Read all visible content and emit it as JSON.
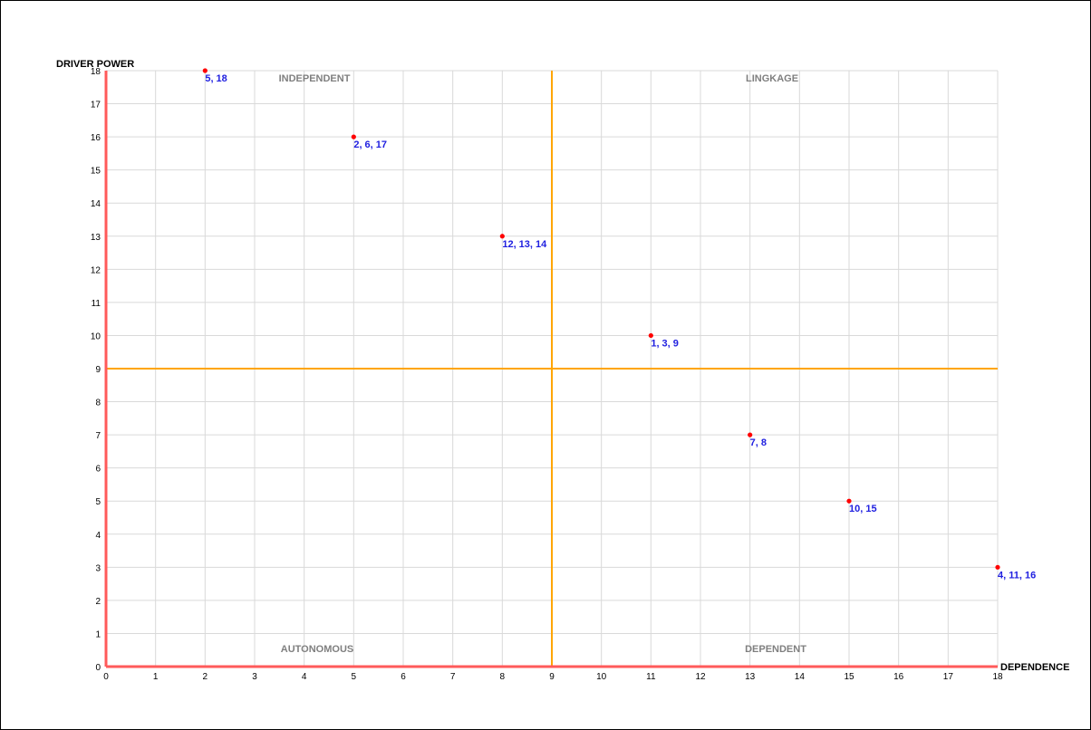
{
  "chart_data": {
    "type": "scatter",
    "ylabel": "DRIVER POWER",
    "xlabel": "DEPENDENCE",
    "xlim": [
      0,
      18
    ],
    "ylim": [
      0,
      18
    ],
    "xticks": [
      0,
      1,
      2,
      3,
      4,
      5,
      6,
      7,
      8,
      9,
      10,
      11,
      12,
      13,
      14,
      15,
      16,
      17,
      18
    ],
    "yticks": [
      0,
      1,
      2,
      3,
      4,
      5,
      6,
      7,
      8,
      9,
      10,
      11,
      12,
      13,
      14,
      15,
      16,
      17,
      18
    ],
    "grid": true,
    "divider": {
      "x": 9,
      "y": 9
    },
    "quadrants": {
      "top_left": "INDEPENDENT",
      "top_right": "LINGKAGE",
      "bottom_left": "AUTONOMOUS",
      "bottom_right": "DEPENDENT"
    },
    "points": [
      {
        "x": 2,
        "y": 18,
        "label": "5, 18"
      },
      {
        "x": 5,
        "y": 16,
        "label": "2, 6, 17"
      },
      {
        "x": 8,
        "y": 13,
        "label": "12, 13, 14"
      },
      {
        "x": 11,
        "y": 10,
        "label": "1, 3, 9"
      },
      {
        "x": 13,
        "y": 7,
        "label": "7, 8"
      },
      {
        "x": 15,
        "y": 5,
        "label": "10, 15"
      },
      {
        "x": 18,
        "y": 3,
        "label": "4, 11, 16"
      }
    ],
    "colors": {
      "grid": "#d9d9d9",
      "axis": "#ff5a5a",
      "divider": "#ffa500",
      "point": "#ff0000",
      "point_label": "#2020e0",
      "quadrant_label": "#7f7f7f"
    }
  }
}
